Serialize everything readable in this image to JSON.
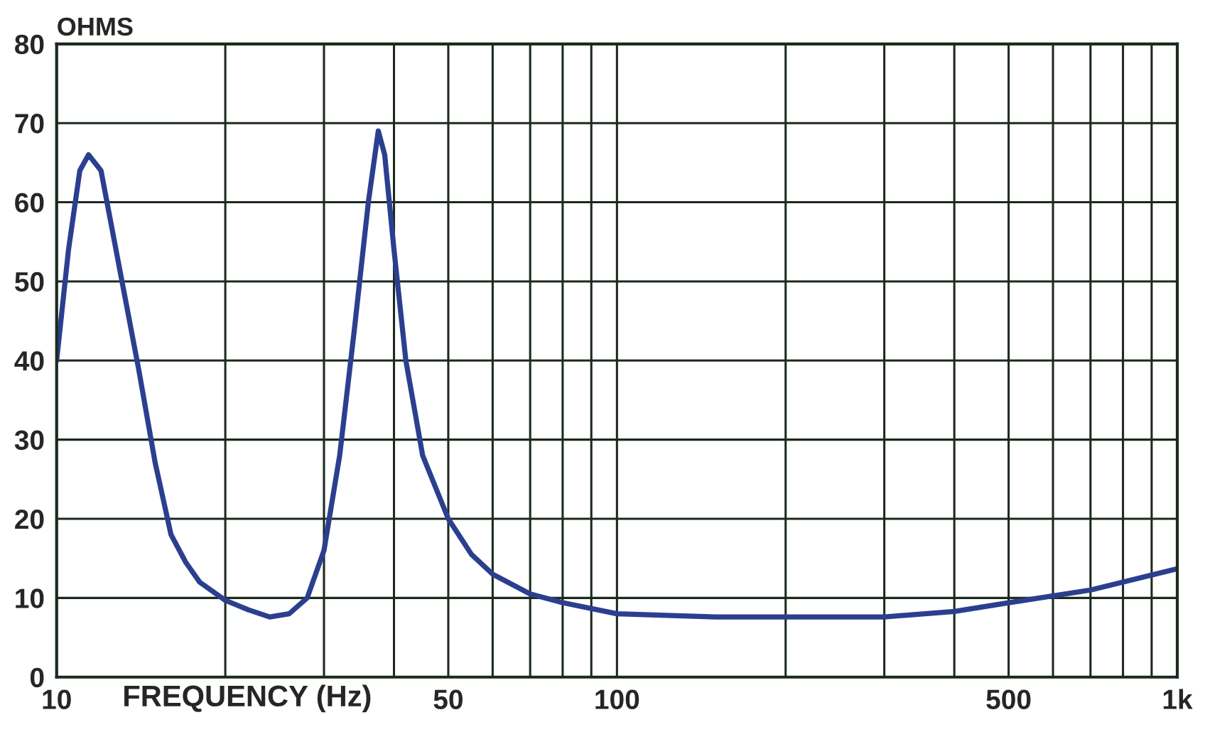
{
  "chart_data": {
    "type": "line",
    "ylabel": "OHMS",
    "xlabel": "FREQUENCY (Hz)",
    "log": "x",
    "x": [
      10,
      10.5,
      11,
      11.4,
      12,
      13,
      14,
      15,
      16,
      17,
      18,
      20,
      22,
      24,
      26,
      28,
      30,
      32,
      34,
      36,
      37.5,
      38.5,
      40,
      42,
      45,
      50,
      55,
      60,
      70,
      80,
      100,
      150,
      200,
      300,
      400,
      500,
      700,
      1000
    ],
    "series": [
      {
        "color": "#2b3f8f",
        "values": [
          40,
          54,
          64,
          66,
          64,
          51,
          39,
          27,
          18,
          14.5,
          12,
          9.7,
          8.5,
          7.6,
          8,
          10,
          16,
          28,
          44,
          60,
          69,
          66,
          54,
          40,
          28,
          20,
          15.5,
          13,
          10.5,
          9.4,
          8,
          7.6,
          7.6,
          7.6,
          8.3,
          9.4,
          11,
          13.7
        ]
      }
    ],
    "xlim": [
      10,
      1000
    ],
    "ylim": [
      0,
      80
    ],
    "xticks": [
      10,
      {
        "value": 20,
        "label": null
      },
      {
        "value": 30,
        "label": null
      },
      {
        "value": 40,
        "label": null
      },
      50,
      {
        "value": 60,
        "label": null
      },
      {
        "value": 70,
        "label": null
      },
      {
        "value": 80,
        "label": null
      },
      {
        "value": 90,
        "label": null
      },
      100,
      {
        "value": 200,
        "label": null
      },
      {
        "value": 300,
        "label": null
      },
      {
        "value": 400,
        "label": null
      },
      500,
      {
        "value": 600,
        "label": null
      },
      {
        "value": 700,
        "label": null
      },
      {
        "value": 800,
        "label": null
      },
      {
        "value": 900,
        "label": null
      },
      {
        "value": 1000,
        "label": "1k"
      }
    ],
    "yticks": [
      0,
      10,
      20,
      30,
      40,
      50,
      60,
      70,
      80
    ],
    "grid": true,
    "line_style": "solid",
    "marker": "none"
  }
}
